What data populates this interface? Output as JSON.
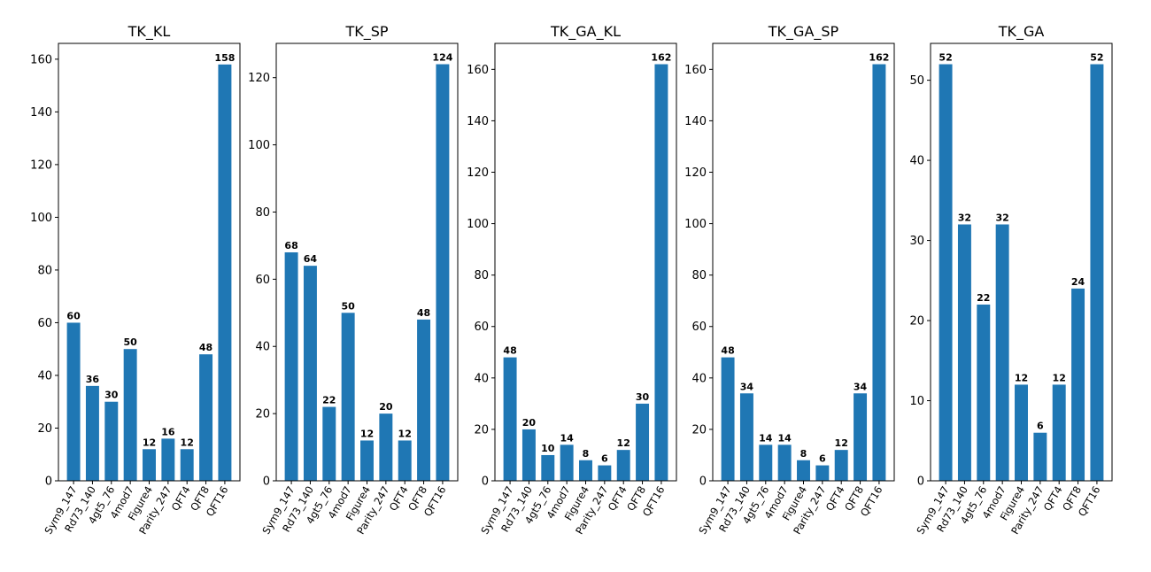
{
  "chart_data": [
    {
      "type": "bar",
      "title": "TK_KL",
      "categories": [
        "Sym9_147",
        "Rd73_140",
        "4gt5_76",
        "4mod7",
        "Figure4",
        "Parity_247",
        "QFT4",
        "QFT8",
        "QFT16"
      ],
      "values": [
        60,
        36,
        30,
        50,
        12,
        16,
        12,
        48,
        158
      ],
      "ylim": [
        0,
        166
      ],
      "yticks": [
        0,
        20,
        40,
        60,
        80,
        100,
        120,
        140,
        160
      ],
      "xlabel": "",
      "ylabel": "",
      "grid": false,
      "bar_color": "#1f77b4"
    },
    {
      "type": "bar",
      "title": "TK_SP",
      "categories": [
        "Sym9_147",
        "Rd73_140",
        "4gt5_76",
        "4mod7",
        "Figure4",
        "Parity_247",
        "QFT4",
        "QFT8",
        "QFT16"
      ],
      "values": [
        68,
        64,
        22,
        50,
        12,
        20,
        12,
        48,
        124
      ],
      "ylim": [
        0,
        130.2
      ],
      "yticks": [
        0,
        20,
        40,
        60,
        80,
        100,
        120
      ],
      "xlabel": "",
      "ylabel": "",
      "grid": false,
      "bar_color": "#1f77b4"
    },
    {
      "type": "bar",
      "title": "TK_GA_KL",
      "categories": [
        "Sym9_147",
        "Rd73_140",
        "4gt5_76",
        "4mod7",
        "Figure4",
        "Parity_247",
        "QFT4",
        "QFT8",
        "QFT16"
      ],
      "values": [
        48,
        20,
        10,
        14,
        8,
        6,
        12,
        30,
        162
      ],
      "ylim": [
        0,
        170.1
      ],
      "yticks": [
        0,
        20,
        40,
        60,
        80,
        100,
        120,
        140,
        160
      ],
      "xlabel": "",
      "ylabel": "",
      "grid": false,
      "bar_color": "#1f77b4"
    },
    {
      "type": "bar",
      "title": "TK_GA_SP",
      "categories": [
        "Sym9_147",
        "Rd73_140",
        "4gt5_76",
        "4mod7",
        "Figure4",
        "Parity_247",
        "QFT4",
        "QFT8",
        "QFT16"
      ],
      "values": [
        48,
        34,
        14,
        14,
        8,
        6,
        12,
        34,
        162
      ],
      "ylim": [
        0,
        170.1
      ],
      "yticks": [
        0,
        20,
        40,
        60,
        80,
        100,
        120,
        140,
        160
      ],
      "xlabel": "",
      "ylabel": "",
      "grid": false,
      "bar_color": "#1f77b4"
    },
    {
      "type": "bar",
      "title": "TK_GA",
      "categories": [
        "Sym9_147",
        "Rd73_140",
        "4gt5_76",
        "4mod7",
        "Figure4",
        "Parity_247",
        "QFT4",
        "QFT8",
        "QFT16"
      ],
      "values": [
        52,
        32,
        22,
        32,
        12,
        6,
        12,
        24,
        52
      ],
      "ylim": [
        0,
        54.6
      ],
      "yticks": [
        0,
        10,
        20,
        30,
        40,
        50
      ],
      "xlabel": "",
      "ylabel": "",
      "grid": false,
      "bar_color": "#1f77b4"
    }
  ]
}
